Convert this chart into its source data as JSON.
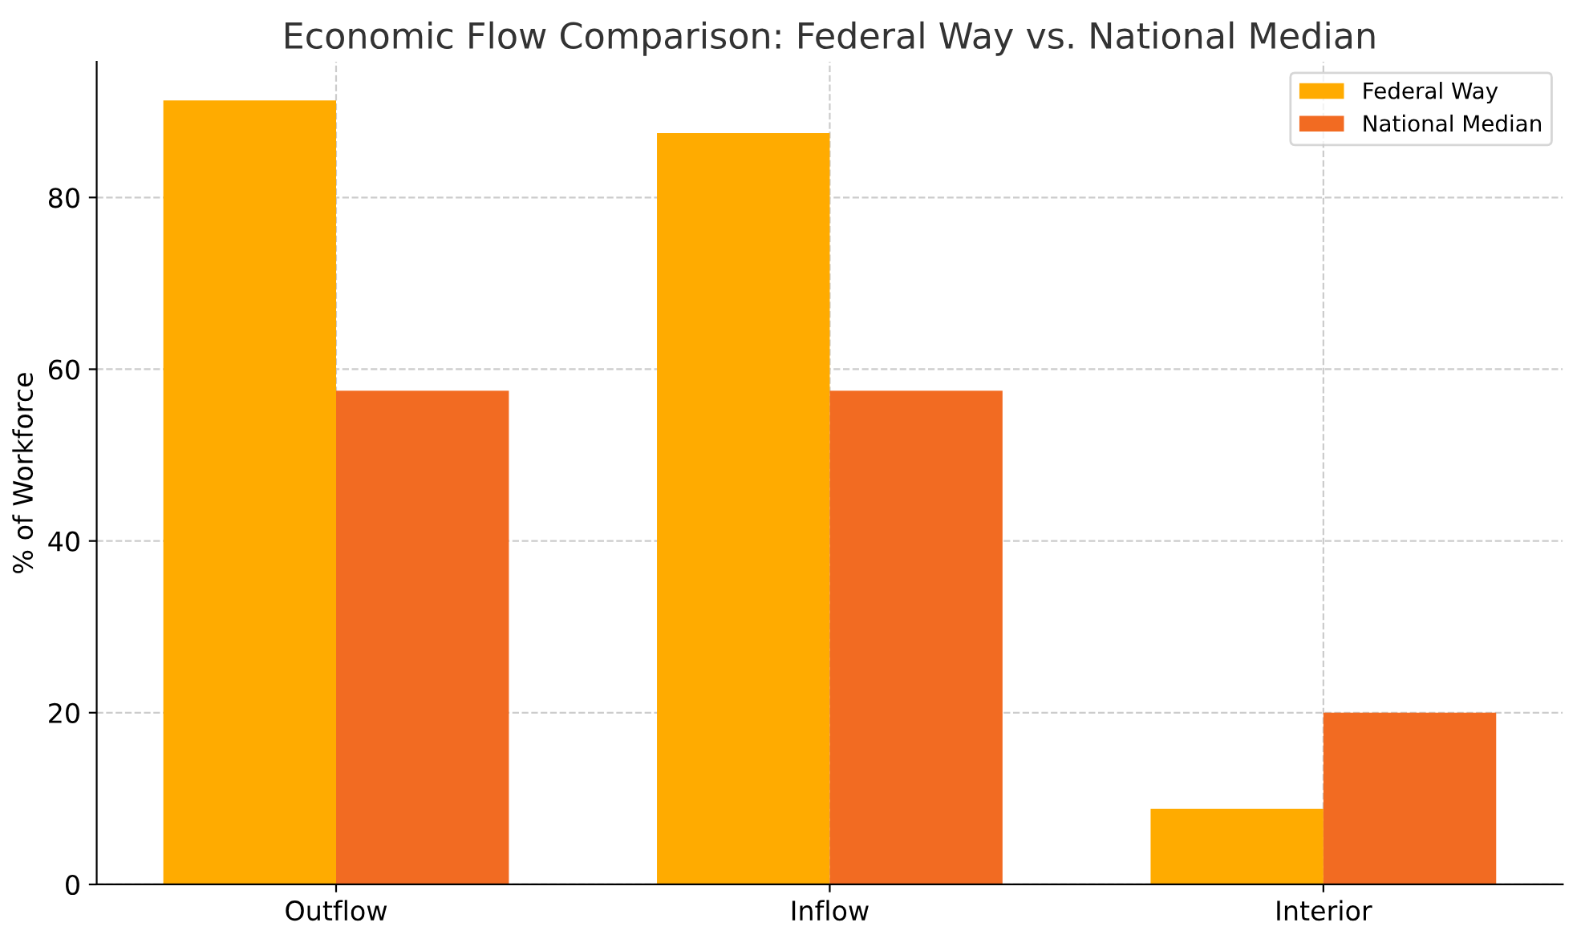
{
  "chart_data": {
    "type": "bar",
    "title": "Economic Flow Comparison: Federal Way vs. National Median",
    "ylabel": "% of Workforce",
    "categories": [
      "Outflow",
      "Inflow",
      "Interior"
    ],
    "series": [
      {
        "name": "Federal Way",
        "color": "#ffab00",
        "values": [
          91.3,
          87.5,
          8.8
        ]
      },
      {
        "name": "National Median",
        "color": "#f26b22",
        "values": [
          57.5,
          57.5,
          20.0
        ]
      }
    ],
    "ylim": [
      0,
      95.8
    ],
    "yticks": [
      0,
      20,
      40,
      60,
      80
    ],
    "grid": true,
    "legend": "top right"
  }
}
